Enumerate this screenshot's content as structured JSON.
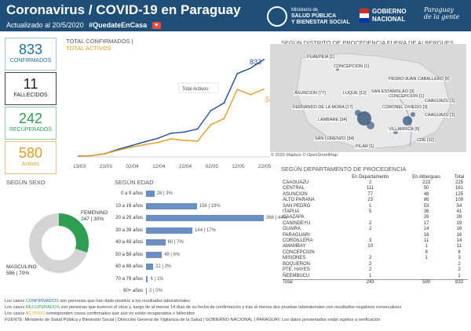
{
  "header": {
    "title": "Coronavirus / COVID-19 en Paraguay",
    "updated": "Actualizado al 20/5/2020",
    "hashtag": "#QuedateEnCasa",
    "ministry_line1": "Ministerio de",
    "ministry_line2": "SALUD PÚBLICA",
    "ministry_line3": "Y BIENESTAR SOCIAL",
    "gov_line1": "GOBIERNO",
    "gov_line2": "NACIONAL",
    "slogan_line1": "Paraguay",
    "slogan_line2": "de la gente"
  },
  "kpis": {
    "confirmed": {
      "value": "833",
      "label": "CONFIRMADOS",
      "color": "#1f6fb2"
    },
    "deaths": {
      "value": "11",
      "label": "FALLECIDOS",
      "color": "#222222"
    },
    "recovered": {
      "value": "242",
      "label": "RECUPERADOS",
      "color": "#2e9e52"
    },
    "active": {
      "value": "580",
      "label": "Activos",
      "color": "#e69a1f"
    }
  },
  "trend": {
    "title_confirmed": "TOTAL CONFIRMADOS |",
    "title_active": "TOTAL ACTIVOS",
    "annotation": "Total Activos",
    "end_confirmed_label": "833",
    "end_active_label": "580",
    "x_ticks": [
      "13/03",
      "23/03",
      "02/04",
      "12/04",
      "22/04",
      "02/05",
      "12/05",
      "22/05"
    ]
  },
  "chart_data": {
    "type": "line",
    "title": "TOTAL CONFIRMADOS | TOTAL ACTIVOS",
    "x": [
      "13/03",
      "18/03",
      "23/03",
      "28/03",
      "02/04",
      "07/04",
      "12/04",
      "17/04",
      "22/04",
      "27/04",
      "02/05",
      "07/05",
      "12/05",
      "17/05",
      "20/05"
    ],
    "series": [
      {
        "name": "Total confirmados",
        "color": "#1f4e9a",
        "values": [
          6,
          11,
          27,
          65,
          96,
          129,
          159,
          202,
          213,
          239,
          396,
          462,
          713,
          759,
          833
        ]
      },
      {
        "name": "Total activos",
        "color": "#e69a1f",
        "values": [
          6,
          11,
          26,
          58,
          83,
          105,
          123,
          155,
          141,
          135,
          276,
          327,
          577,
          533,
          580
        ]
      }
    ],
    "ylim": [
      0,
      900
    ]
  },
  "map": {
    "title": "SEGÚN DISTRITO DE PROCEDENCIA FUERA DE ALBERGUES",
    "footer": "© 2020 Mapbox  © OpenStreetMap",
    "labels": [
      "PUAEPEIA [1]",
      "CONCEPCION [1]",
      "PEDRO JUAN CABALLERO [6]",
      "ASUNCION [77]",
      "LUQUE [12]",
      "SAN ESTANISLAO [3]",
      "CONCEPCION [1]",
      "CAAGUAZU [1]",
      "FERNANDO DE LA MORA [17]",
      "CORONEL OVIEDO [3]",
      "LAMBARE [34]",
      "CAAGUAZU [1]",
      "VILLARRICA [5]",
      "SAN LORENZO [34]",
      "PILAR [1]",
      "CDE [11]"
    ]
  },
  "sex": {
    "title": "SEGÚN SEXO",
    "female_label": "FEMENINO",
    "female_value": "247 | 30%",
    "male_label": "MASCULINO",
    "male_value": "586 | 70%",
    "female_pct": 30,
    "male_pct": 70,
    "female_color": "#2e9e52",
    "male_color": "#d4d4d4"
  },
  "age": {
    "title": "SEGÚN EDAD",
    "max": 366,
    "rows": [
      {
        "label": "0 a 9 años",
        "value": 26,
        "text": "26 | 3%"
      },
      {
        "label": "10 a 19 años",
        "value": 158,
        "text": "158 | 19%"
      },
      {
        "label": "20 a 29 años",
        "value": 366,
        "text": "366 | 44%"
      },
      {
        "label": "30 a 39 años",
        "value": 144,
        "text": "144 | 17%"
      },
      {
        "label": "40 a 49 años",
        "value": 60,
        "text": "60 | 7%"
      },
      {
        "label": "50 a 59 años",
        "value": 49,
        "text": "49 | 6%"
      },
      {
        "label": "60 a 69 años",
        "value": 22,
        "text": "22 | 3%"
      },
      {
        "label": "70 a 79 años",
        "value": 6,
        "text": "6 | 1%"
      },
      {
        "label": "80+ años",
        "value": 2,
        "text": "2 | 0%"
      }
    ]
  },
  "dept": {
    "title": "SEGÚN DEPARTAMENTO DE PROCEDENCIA",
    "headers": [
      "En Departamento",
      "En Albergues",
      "Total"
    ],
    "rows": [
      [
        "CAAGUAZU",
        "2",
        "223",
        "225"
      ],
      [
        "CENTRAL",
        "111",
        "50",
        "161"
      ],
      [
        "ASUNCION",
        "77",
        "48",
        "125"
      ],
      [
        "ALTO PARANA",
        "23",
        "86",
        "109"
      ],
      [
        "SAN PEDRO",
        "1",
        "53",
        "54"
      ],
      [
        "ITAPUA",
        "5",
        "36",
        "41"
      ],
      [
        "CAAZAPA",
        "",
        "26",
        "26"
      ],
      [
        "CANINDEYU",
        "2",
        "17",
        "19"
      ],
      [
        "GUAIRA",
        "2",
        "14",
        "16"
      ],
      [
        "PARAGUARI",
        "",
        "16",
        "16"
      ],
      [
        "CORDILLERA",
        "3",
        "11",
        "14"
      ],
      [
        "AMAMBAY",
        "10",
        "1",
        "11"
      ],
      [
        "CONCEPCION",
        "",
        "8",
        "8"
      ],
      [
        "MISIONES",
        "2",
        "1",
        "3"
      ],
      [
        "BOQUERON",
        "2",
        "",
        "2"
      ],
      [
        "PTE. HAYES",
        "2",
        "",
        "2"
      ],
      [
        "ÑEEMBUCU",
        "1",
        "",
        "1"
      ]
    ],
    "total": [
      "Total",
      "243",
      "590",
      "833"
    ]
  },
  "notes": {
    "line1_a": "Los casos ",
    "line1_b": "CONFIRMADOS",
    "line1_c": " son personas que han dado positivo a los resultados laboratoriales",
    "line2_a": "Los casos ",
    "line2_b": "RECUPERADOS",
    "line2_c": " son personas que tuvieron el virus y, luego de al menos 14 días de su fecha de confirmación y tras al menos dos pruebas laboratoriales con resultados negativos consecutivos",
    "line3_a": "Los casos ",
    "line3_b": "ACTIVOS",
    "line3_c": " corresponden casos confirmados que aún no están recuperados o fallecidos",
    "source": "FUENTE: Ministerio de Salud Pública y Bienestar Social | Dirección General de Vigilancia de la Salud | GOBIERNO NACIONAL | PARAGUAY. Los datos presentados están sujetos a verificación"
  }
}
